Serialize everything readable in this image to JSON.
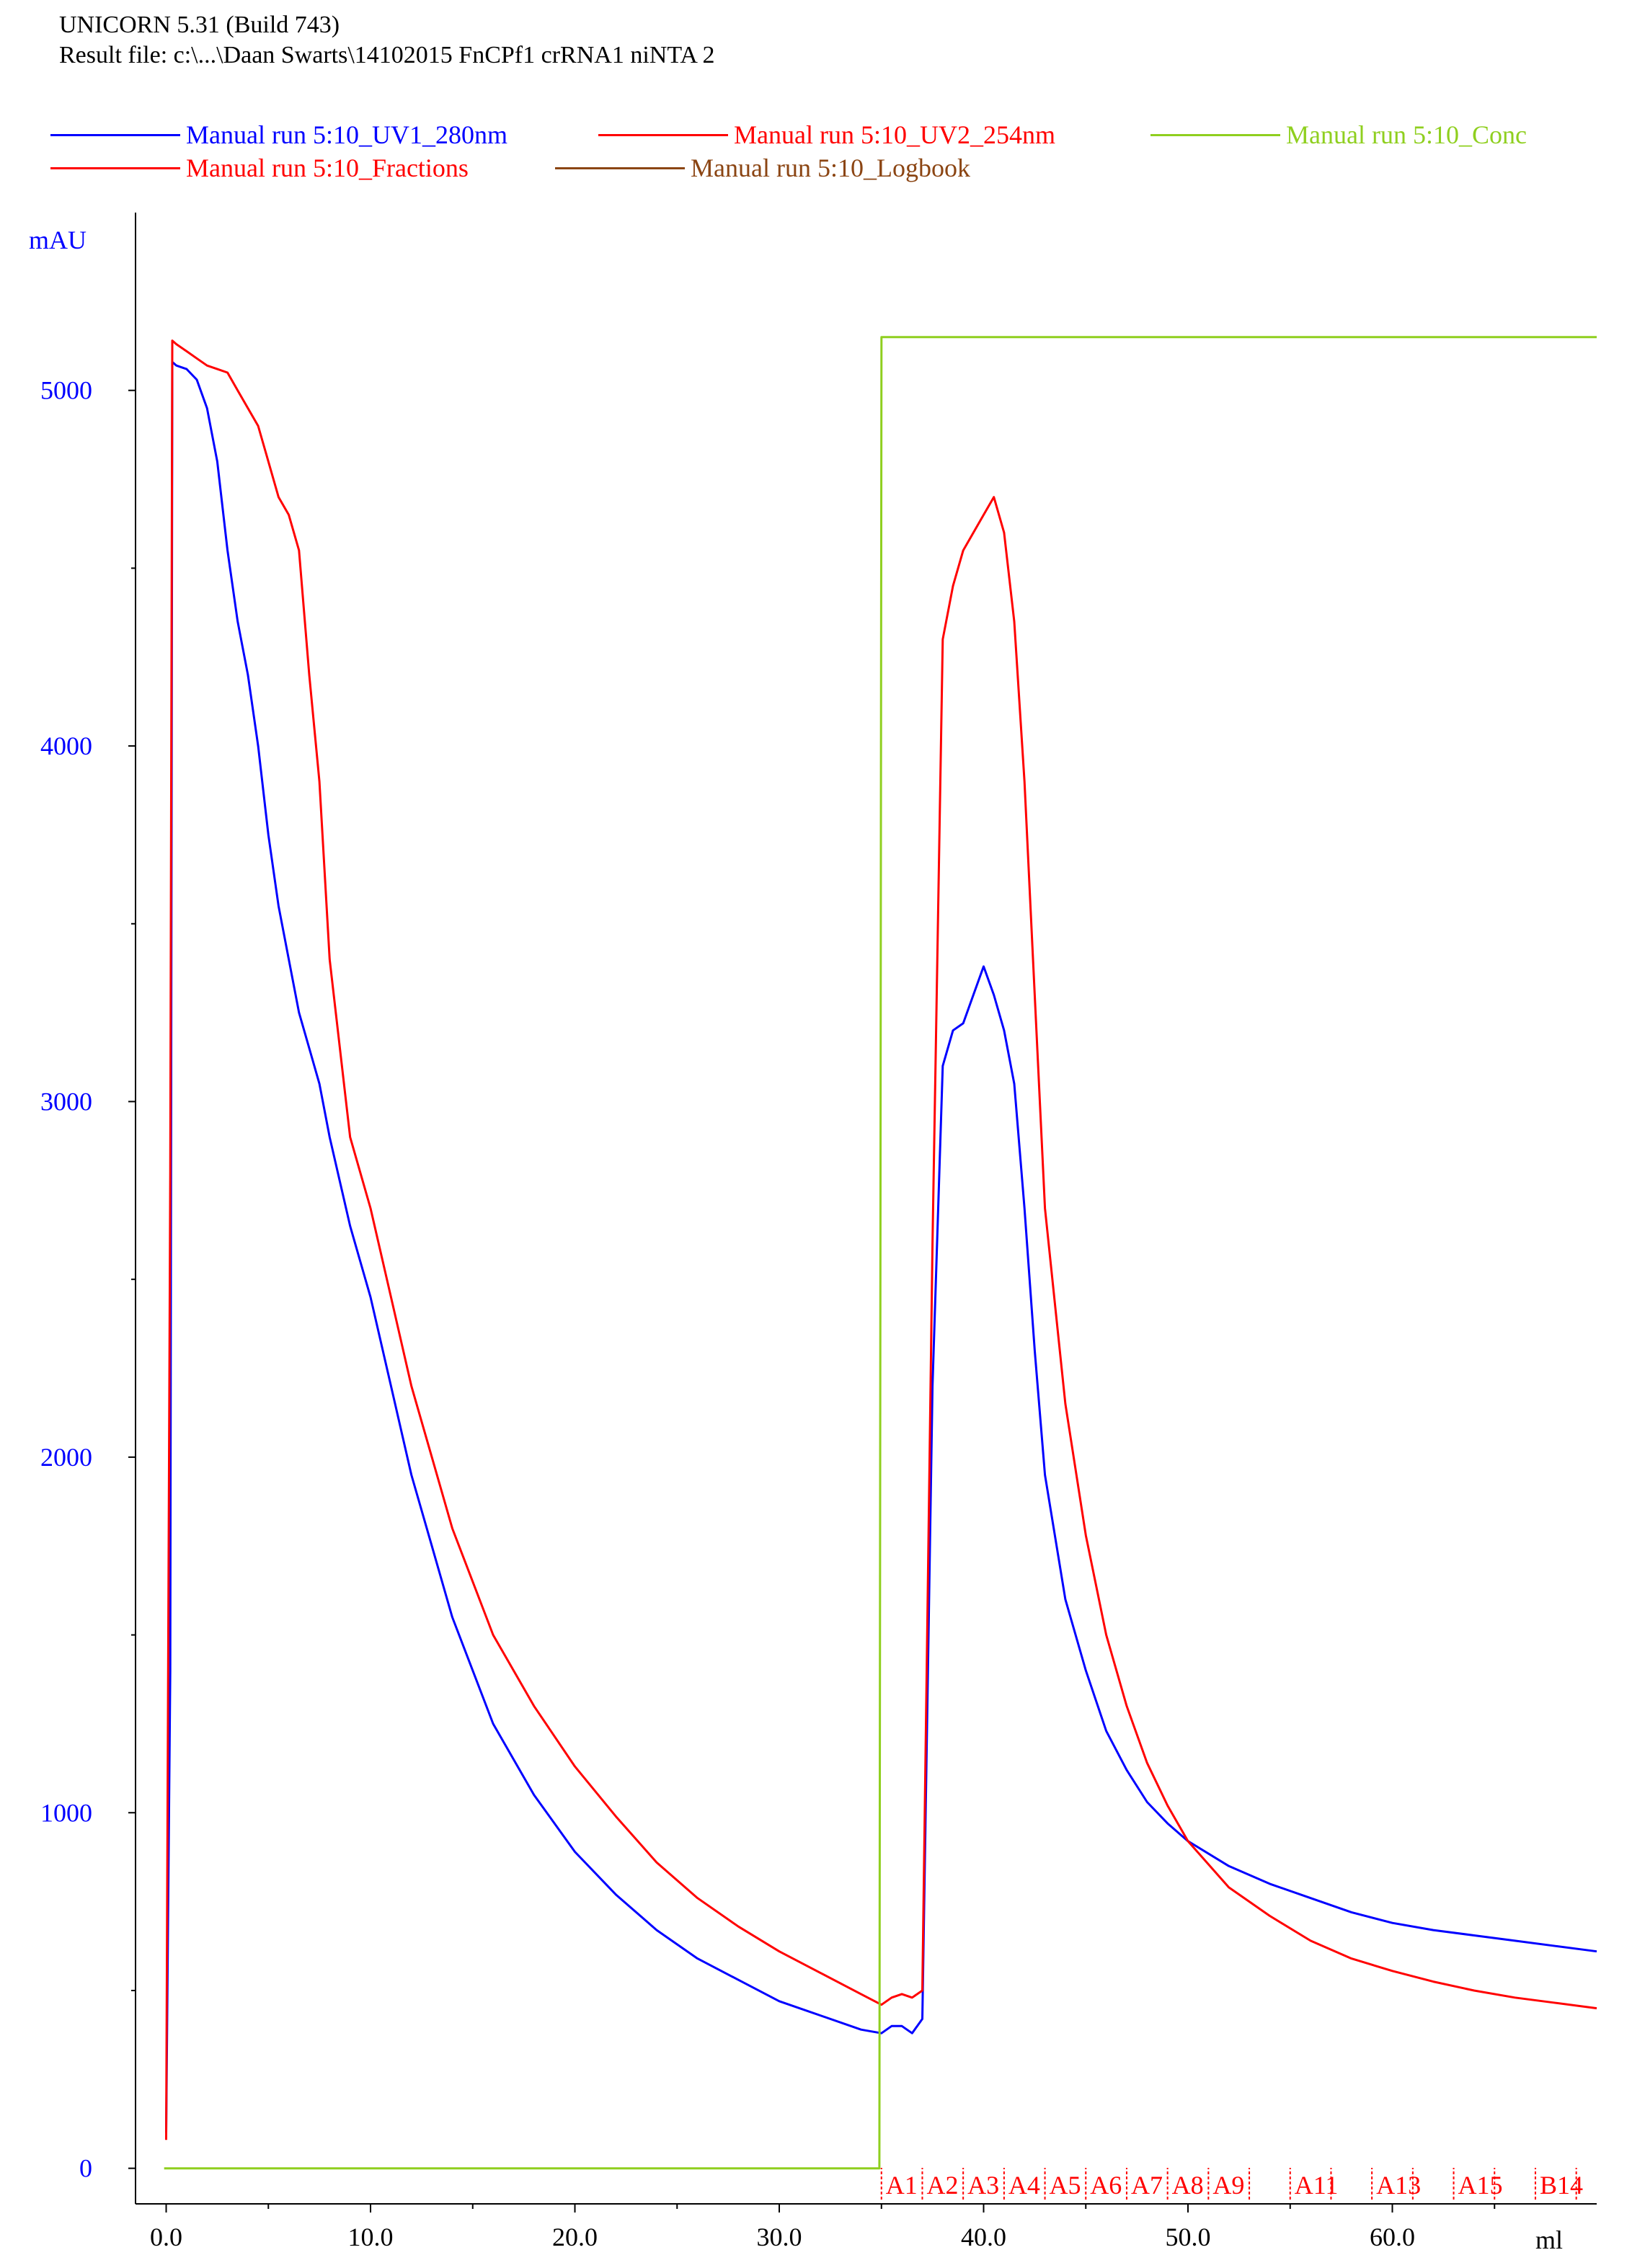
{
  "header": {
    "line1": "UNICORN 5.31 (Build 743)",
    "line2": "Result file: c:\\...\\Daan Swarts\\14102015 FnCPf1 crRNA1 niNTA 2"
  },
  "legend": [
    {
      "label": "Manual run 5:10_UV1_280nm",
      "color": "#0000ff"
    },
    {
      "label": "Manual run 5:10_UV2_254nm",
      "color": "#ff0000"
    },
    {
      "label": "Manual run 5:10_Conc",
      "color": "#8fcf1f"
    },
    {
      "label": "Manual run 5:10_Fractions",
      "color": "#ff0000"
    },
    {
      "label": "Manual run 5:10_Logbook",
      "color": "#8b4513"
    }
  ],
  "chart_data": {
    "type": "line",
    "ylabel": "mAU",
    "xlabel": "ml",
    "xlim": [
      -1.5,
      70.0
    ],
    "ylim": [
      -100,
      5500
    ],
    "x_ticks": [
      "0.0",
      "10.0",
      "20.0",
      "30.0",
      "40.0",
      "50.0",
      "60.0"
    ],
    "x_tick_values": [
      0,
      10,
      20,
      30,
      40,
      50,
      60
    ],
    "y_ticks": [
      "0",
      "1000",
      "2000",
      "3000",
      "4000",
      "5000"
    ],
    "y_tick_values": [
      0,
      1000,
      2000,
      3000,
      4000,
      5000
    ],
    "series": [
      {
        "name": "Manual run 5:10_UV1_280nm",
        "color": "#0000ff",
        "x": [
          0,
          0.2,
          0.3,
          0.5,
          1,
          1.5,
          2,
          2.5,
          3,
          3.5,
          4,
          4.5,
          5,
          5.5,
          6,
          6.5,
          7,
          7.5,
          8,
          9,
          10,
          11,
          12,
          13,
          14,
          16,
          18,
          20,
          22,
          24,
          26,
          28,
          30,
          32,
          34,
          35,
          35.5,
          36,
          36.5,
          37,
          37.5,
          38,
          38.5,
          39,
          39.5,
          40,
          40.5,
          41,
          41.5,
          42,
          42.5,
          43,
          44,
          45,
          46,
          47,
          48,
          49,
          50,
          52,
          54,
          56,
          58,
          60,
          62,
          64,
          66,
          68,
          70
        ],
        "y": [
          100,
          1400,
          5080,
          5070,
          5060,
          5030,
          4950,
          4800,
          4550,
          4350,
          4200,
          4000,
          3750,
          3550,
          3400,
          3250,
          3150,
          3050,
          2900,
          2650,
          2450,
          2200,
          1950,
          1750,
          1550,
          1250,
          1050,
          890,
          770,
          670,
          590,
          530,
          470,
          430,
          390,
          380,
          400,
          400,
          380,
          420,
          2200,
          3100,
          3200,
          3220,
          3300,
          3380,
          3300,
          3200,
          3050,
          2700,
          2300,
          1950,
          1600,
          1400,
          1230,
          1120,
          1030,
          970,
          920,
          850,
          800,
          760,
          720,
          690,
          670,
          655,
          640,
          625,
          610
        ]
      },
      {
        "name": "Manual run 5:10_UV2_254nm",
        "color": "#ff0000",
        "x": [
          0,
          0.2,
          0.3,
          0.5,
          1,
          1.5,
          2,
          2.5,
          3,
          3.5,
          4,
          4.5,
          5,
          5.5,
          6,
          6.5,
          7,
          7.5,
          8,
          9,
          10,
          11,
          12,
          13,
          14,
          16,
          18,
          20,
          22,
          24,
          26,
          28,
          30,
          32,
          34,
          35,
          35.5,
          36,
          36.5,
          37,
          37.5,
          38,
          38.5,
          39,
          39.5,
          40,
          40.5,
          41,
          41.5,
          42,
          42.5,
          43,
          44,
          45,
          46,
          47,
          48,
          49,
          50,
          52,
          54,
          56,
          58,
          60,
          62,
          64,
          66,
          68,
          70
        ],
        "y": [
          80,
          2800,
          5140,
          5130,
          5110,
          5090,
          5070,
          5060,
          5050,
          5000,
          4950,
          4900,
          4800,
          4700,
          4650,
          4550,
          4200,
          3900,
          3400,
          2900,
          2700,
          2450,
          2200,
          2000,
          1800,
          1500,
          1300,
          1130,
          990,
          860,
          760,
          680,
          610,
          550,
          490,
          460,
          480,
          490,
          480,
          500,
          2600,
          4300,
          4450,
          4550,
          4600,
          4650,
          4700,
          4600,
          4350,
          3900,
          3300,
          2700,
          2150,
          1780,
          1500,
          1300,
          1140,
          1020,
          920,
          790,
          710,
          640,
          590,
          555,
          525,
          500,
          480,
          465,
          450
        ]
      },
      {
        "name": "Manual run 5:10_Conc",
        "color": "#8fcf1f",
        "x": [
          -0.1,
          34.9,
          35.0,
          70
        ],
        "y": [
          0,
          0,
          5150,
          5150
        ]
      }
    ],
    "fractions": {
      "color": "#ff0000",
      "labels": [
        "A1",
        "A2",
        "A3",
        "A4",
        "A5",
        "A6",
        "A7",
        "A8",
        "A9",
        "A11",
        "A13",
        "A15",
        "B14"
      ],
      "label_x": [
        35.0,
        37.0,
        39.0,
        41.0,
        43.0,
        45.0,
        47.0,
        49.0,
        51.0,
        55.0,
        59.0,
        63.0,
        67.0
      ],
      "tick_x": [
        35,
        37,
        39,
        41,
        43,
        45,
        47,
        49,
        51,
        53,
        55,
        57,
        59,
        61,
        63,
        65,
        67,
        69
      ]
    }
  }
}
